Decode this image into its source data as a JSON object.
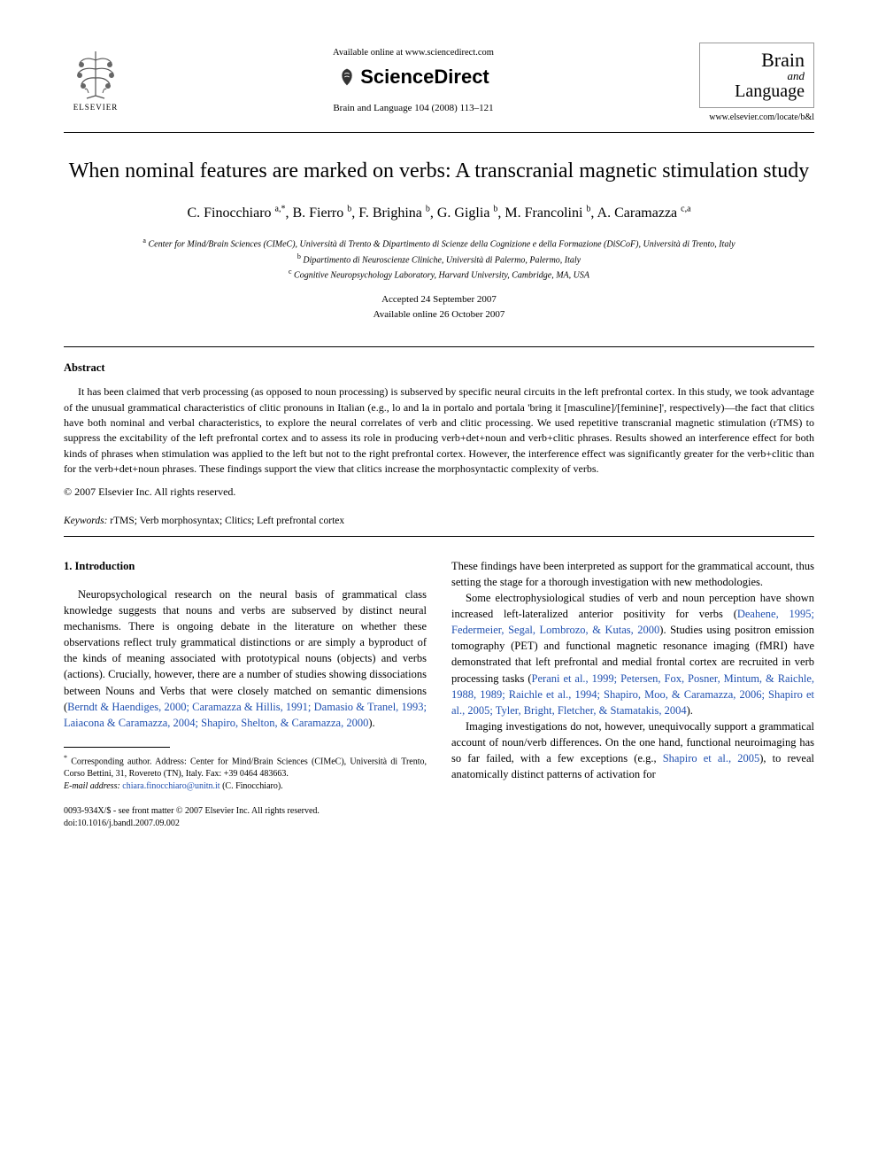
{
  "header": {
    "available_online": "Available online at www.sciencedirect.com",
    "sciencedirect": "ScienceDirect",
    "journal_ref": "Brain and Language 104 (2008) 113–121",
    "elsevier": "ELSEVIER",
    "journal_brand_1": "Brain",
    "journal_brand_and": "and",
    "journal_brand_2": "Language",
    "journal_url": "www.elsevier.com/locate/b&l"
  },
  "title": "When nominal features are marked on verbs: A transcranial magnetic stimulation study",
  "authors_html": "C. Finocchiaro <sup>a,*</sup>, B. Fierro <sup>b</sup>, F. Brighina <sup>b</sup>, G. Giglia <sup>b</sup>, M. Francolini <sup>b</sup>, A. Caramazza <sup>c,a</sup>",
  "affiliations": {
    "a": "Center for Mind/Brain Sciences (CIMeC), Università di Trento & Dipartimento di Scienze della Cognizione e della Formazione (DiSCoF), Università di Trento, Italy",
    "b": "Dipartimento di Neuroscienze Cliniche, Università di Palermo, Palermo, Italy",
    "c": "Cognitive Neuropsychology Laboratory, Harvard University, Cambridge, MA, USA"
  },
  "dates": {
    "accepted": "Accepted 24 September 2007",
    "available": "Available online 26 October 2007"
  },
  "abstract": {
    "heading": "Abstract",
    "text": "It has been claimed that verb processing (as opposed to noun processing) is subserved by specific neural circuits in the left prefrontal cortex. In this study, we took advantage of the unusual grammatical characteristics of clitic pronouns in Italian (e.g., lo and la in portalo and portala 'bring it [masculine]/[feminine]', respectively)—the fact that clitics have both nominal and verbal characteristics, to explore the neural correlates of verb and clitic processing. We used repetitive transcranial magnetic stimulation (rTMS) to suppress the excitability of the left prefrontal cortex and to assess its role in producing verb+det+noun and verb+clitic phrases. Results showed an interference effect for both kinds of phrases when stimulation was applied to the left but not to the right prefrontal cortex. However, the interference effect was significantly greater for the verb+clitic than for the verb+det+noun phrases. These findings support the view that clitics increase the morphosyntactic complexity of verbs.",
    "copyright": "© 2007 Elsevier Inc. All rights reserved."
  },
  "keywords": {
    "label": "Keywords:",
    "values": "rTMS; Verb morphosyntax; Clitics; Left prefrontal cortex"
  },
  "body": {
    "section_heading": "1. Introduction",
    "col1_p1_a": "Neuropsychological research on the neural basis of grammatical class knowledge suggests that nouns and verbs are subserved by distinct neural mechanisms. There is ongoing debate in the literature on whether these observations reflect truly grammatical distinctions or are simply a byproduct of the kinds of meaning associated with prototypical nouns (objects) and verbs (actions). Crucially, however, there are a number of studies showing dissociations between Nouns and Verbs that were closely matched on semantic dimensions (",
    "col1_cite1": "Berndt & Haendiges, 2000; Caramazza & Hillis, 1991; Damasio & Tranel, 1993; Laiacona & Caramazza, 2004; Shapiro, Shelton, & Caramazza, 2000",
    "col1_p1_b": ").",
    "col2_p0": "These findings have been interpreted as support for the grammatical account, thus setting the stage for a thorough investigation with new methodologies.",
    "col2_p1_a": "Some electrophysiological studies of verb and noun perception have shown increased left-lateralized anterior positivity for verbs (",
    "col2_cite1": "Deahene, 1995; Federmeier, Segal, Lombrozo, & Kutas, 2000",
    "col2_p1_b": "). Studies using positron emission tomography (PET) and functional magnetic resonance imaging (fMRI) have demonstrated that left prefrontal and medial frontal cortex are recruited in verb processing tasks (",
    "col2_cite2": "Perani et al., 1999; Petersen, Fox, Posner, Mintum, & Raichle, 1988, 1989; Raichle et al., 1994; Shapiro, Moo, & Caramazza, 2006; Shapiro et al., 2005; Tyler, Bright, Fletcher, & Stamatakis, 2004",
    "col2_p1_c": ").",
    "col2_p2_a": "Imaging investigations do not, however, unequivocally support a grammatical account of noun/verb differences. On the one hand, functional neuroimaging has so far failed, with a few exceptions (e.g., ",
    "col2_cite3": "Shapiro et al., 2005",
    "col2_p2_b": "), to reveal anatomically distinct patterns of activation for"
  },
  "footnote": {
    "corr": "Corresponding author. Address: Center for Mind/Brain Sciences (CIMeC), Università di Trento, Corso Bettini, 31, Rovereto (TN), Italy. Fax: +39 0464 483663.",
    "email_label": "E-mail address:",
    "email": "chiara.finocchiaro@unitn.it",
    "email_suffix": "(C. Finocchiaro)."
  },
  "bottom": {
    "line1": "0093-934X/$ - see front matter © 2007 Elsevier Inc. All rights reserved.",
    "line2": "doi:10.1016/j.bandl.2007.09.002"
  },
  "colors": {
    "cite": "#2050b0",
    "text": "#000000",
    "bg": "#ffffff"
  }
}
